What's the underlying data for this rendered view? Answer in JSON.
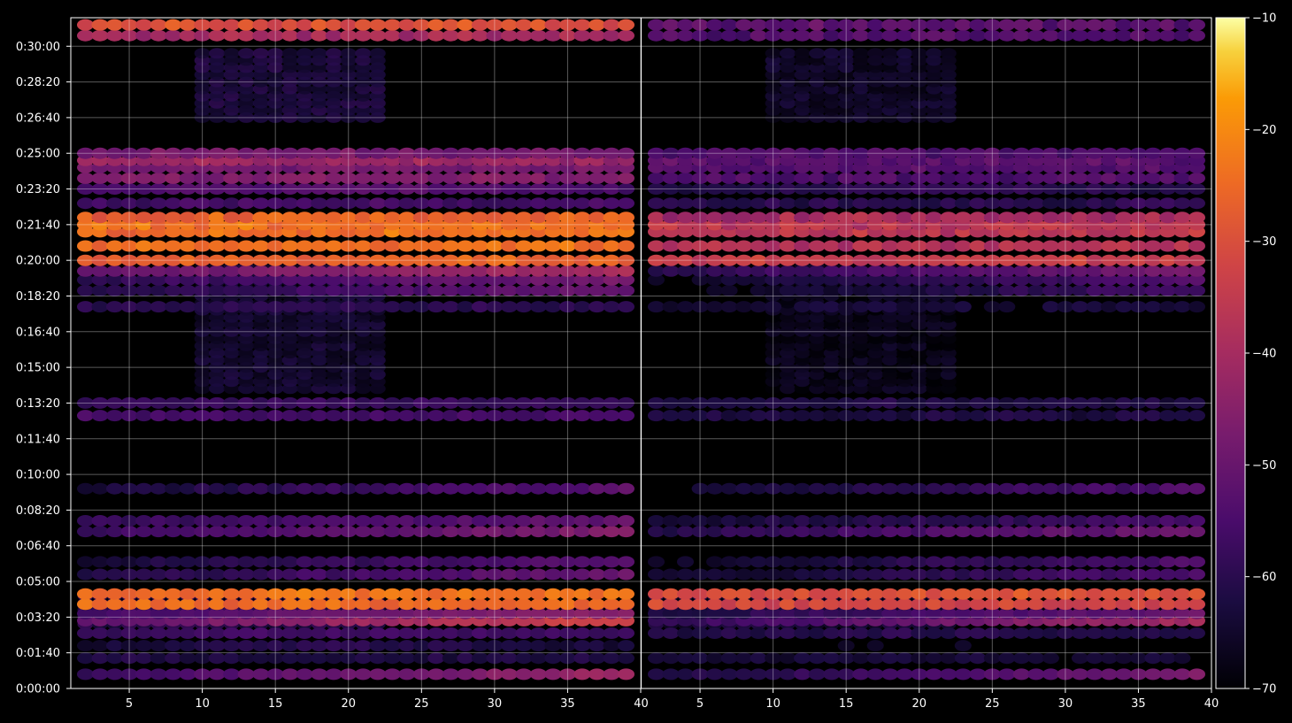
{
  "chart_data": {
    "type": "heatmap",
    "title": "",
    "xlabel": "",
    "ylabel": "",
    "panels": [
      {
        "name": "",
        "xlim": [
          1,
          40
        ],
        "xticks": [
          5,
          10,
          15,
          20,
          25,
          30,
          35,
          40
        ],
        "xtick_labels": [
          "5",
          "10",
          "15",
          "20",
          "25",
          "30",
          "35",
          "40"
        ]
      },
      {
        "name": "",
        "xlim": [
          1,
          40
        ],
        "xticks": [
          5,
          10,
          15,
          20,
          25,
          30,
          35,
          40
        ],
        "xtick_labels": [
          "5",
          "10",
          "15",
          "20",
          "25",
          "30",
          "35",
          "40"
        ]
      }
    ],
    "ylim_seconds": [
      0,
      1880
    ],
    "yticks_seconds": [
      0,
      100,
      200,
      300,
      400,
      500,
      600,
      700,
      800,
      900,
      1000,
      1100,
      1200,
      1300,
      1400,
      1500,
      1600,
      1700,
      1800
    ],
    "ytick_labels": [
      "0:00:00",
      "0:01:40",
      "0:03:20",
      "0:05:00",
      "0:06:40",
      "0:08:20",
      "0:10:00",
      "0:11:40",
      "0:13:20",
      "0:15:00",
      "0:16:40",
      "0:18:20",
      "0:20:00",
      "0:21:40",
      "0:23:20",
      "0:25:00",
      "0:26:40",
      "0:28:20",
      "0:30:00"
    ],
    "grid": true,
    "colormap": "inferno",
    "colorbar": {
      "range": [
        -70,
        -10
      ],
      "ticks": [
        -10,
        -20,
        -30,
        -40,
        -50,
        -60,
        -70
      ],
      "tick_labels": [
        "−10",
        "−20",
        "−30",
        "−40",
        "−50",
        "−60",
        "−70"
      ],
      "placement": "right"
    },
    "bands": [
      {
        "t": 40,
        "p1": -50,
        "p2": -55,
        "slope": 8,
        "ramp": "rising"
      },
      {
        "t": 85,
        "p1": -62,
        "p2": -64,
        "slope": 2,
        "ramp": "flat"
      },
      {
        "t": 120,
        "p1": -60,
        "p2": -66,
        "slope": 4,
        "ramp": "mid"
      },
      {
        "t": 155,
        "p1": -56,
        "p2": -60,
        "slope": 2,
        "ramp": "mid"
      },
      {
        "t": 190,
        "p1": -42,
        "p2": -50,
        "slope": 10,
        "ramp": "rising"
      },
      {
        "t": 210,
        "p1": -50,
        "p2": -56,
        "slope": 6,
        "ramp": "rising"
      },
      {
        "t": 235,
        "p1": -55,
        "p2": -58,
        "slope": 4,
        "ramp": "rising"
      },
      {
        "t": 236,
        "p1": -25,
        "p2": -32,
        "slope": 4,
        "ramp": "flat"
      },
      {
        "t": 265,
        "p1": -24,
        "p2": -30,
        "slope": 4,
        "ramp": "flat"
      },
      {
        "t": 320,
        "p1": -56,
        "p2": -60,
        "slope": 6,
        "ramp": "rising"
      },
      {
        "t": 355,
        "p1": -58,
        "p2": -60,
        "slope": 6,
        "ramp": "rising"
      },
      {
        "t": 440,
        "p1": -52,
        "p2": -55,
        "slope": 6,
        "ramp": "rising"
      },
      {
        "t": 470,
        "p1": -55,
        "p2": -60,
        "slope": 4,
        "ramp": "rising"
      },
      {
        "t": 560,
        "p1": -58,
        "p2": -60,
        "slope": 6,
        "ramp": "rising"
      },
      {
        "t": 765,
        "p1": -56,
        "p2": -62,
        "slope": 2,
        "ramp": "flat"
      },
      {
        "t": 800,
        "p1": -58,
        "p2": -62,
        "slope": 2,
        "ramp": "flat"
      },
      {
        "t": 1070,
        "p1": -60,
        "p2": -64,
        "slope": 2,
        "ramp": "flat"
      },
      {
        "t": 1115,
        "p1": -56,
        "p2": -62,
        "slope": 6,
        "ramp": "rising"
      },
      {
        "t": 1145,
        "p1": -54,
        "p2": -60,
        "slope": 6,
        "ramp": "rising"
      },
      {
        "t": 1170,
        "p1": -45,
        "p2": -54,
        "slope": 6,
        "ramp": "rising"
      },
      {
        "t": 1200,
        "p1": -26,
        "p2": -34,
        "slope": 4,
        "ramp": "flat"
      },
      {
        "t": 1240,
        "p1": -24,
        "p2": -38,
        "slope": 6,
        "ramp": "flat"
      },
      {
        "t": 1280,
        "p1": -24,
        "p2": -36,
        "slope": 6,
        "ramp": "flat"
      },
      {
        "t": 1300,
        "p1": -24,
        "p2": -36,
        "slope": 6,
        "ramp": "flat"
      },
      {
        "t": 1320,
        "p1": -26,
        "p2": -40,
        "slope": 6,
        "ramp": "flat"
      },
      {
        "t": 1360,
        "p1": -56,
        "p2": -60,
        "slope": 4,
        "ramp": "flat"
      },
      {
        "t": 1400,
        "p1": -52,
        "p2": -58,
        "slope": 4,
        "ramp": "mid"
      },
      {
        "t": 1430,
        "p1": -46,
        "p2": -54,
        "slope": 4,
        "ramp": "flat"
      },
      {
        "t": 1460,
        "p1": -48,
        "p2": -54,
        "slope": 4,
        "ramp": "flat"
      },
      {
        "t": 1480,
        "p1": -42,
        "p2": -52,
        "slope": 4,
        "ramp": "flat"
      },
      {
        "t": 1500,
        "p1": -48,
        "p2": -54,
        "slope": 4,
        "ramp": "flat"
      },
      {
        "t": 1830,
        "p1": -40,
        "p2": -54,
        "slope": 6,
        "ramp": "flat"
      },
      {
        "t": 1860,
        "p1": -30,
        "p2": -52,
        "slope": 6,
        "ramp": "flat"
      }
    ],
    "blocks": [
      {
        "t0": 1600,
        "t1": 1780,
        "x0": 10,
        "x1": 22,
        "value": -62
      },
      {
        "t0": 840,
        "t1": 1180,
        "x0": 10,
        "x1": 22,
        "value": -64
      },
      {
        "t0": 180,
        "t1": 260,
        "x0": 2,
        "x1": 22,
        "value": -60
      }
    ]
  }
}
